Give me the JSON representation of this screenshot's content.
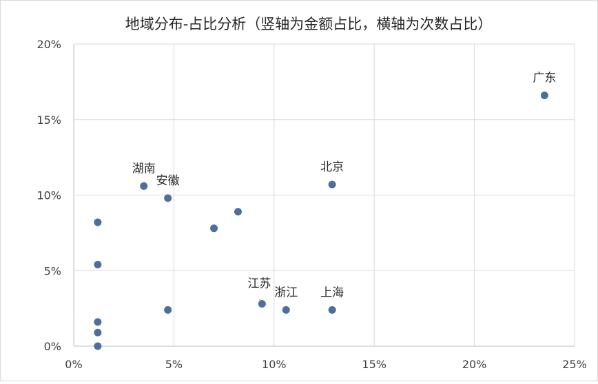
{
  "chart_data": {
    "type": "scatter",
    "title": "地域分布-占比分析（竖轴为金额占比，横轴为次数占比）",
    "xlabel": "",
    "ylabel": "",
    "xlim": [
      0,
      25
    ],
    "ylim": [
      0,
      20
    ],
    "x_ticks": [
      "0%",
      "5%",
      "10%",
      "15%",
      "20%",
      "25%"
    ],
    "y_ticks": [
      "0%",
      "5%",
      "10%",
      "15%",
      "20%"
    ],
    "grid": true,
    "marker_color": "#4e6e9b",
    "points": [
      {
        "x": 23.5,
        "y": 16.6,
        "label": "广东"
      },
      {
        "x": 12.9,
        "y": 10.7,
        "label": "北京"
      },
      {
        "x": 3.5,
        "y": 10.6,
        "label": "湖南"
      },
      {
        "x": 4.7,
        "y": 9.8,
        "label": "安徽"
      },
      {
        "x": 8.2,
        "y": 8.9,
        "label": ""
      },
      {
        "x": 7.0,
        "y": 7.8,
        "label": ""
      },
      {
        "x": 1.2,
        "y": 8.2,
        "label": ""
      },
      {
        "x": 1.2,
        "y": 5.4,
        "label": ""
      },
      {
        "x": 9.4,
        "y": 2.8,
        "label": "江苏"
      },
      {
        "x": 10.6,
        "y": 2.4,
        "label": "浙江"
      },
      {
        "x": 12.9,
        "y": 2.4,
        "label": "上海"
      },
      {
        "x": 4.7,
        "y": 2.4,
        "label": ""
      },
      {
        "x": 1.2,
        "y": 1.6,
        "label": ""
      },
      {
        "x": 1.2,
        "y": 0.9,
        "label": ""
      },
      {
        "x": 1.2,
        "y": 0.0,
        "label": ""
      }
    ]
  }
}
